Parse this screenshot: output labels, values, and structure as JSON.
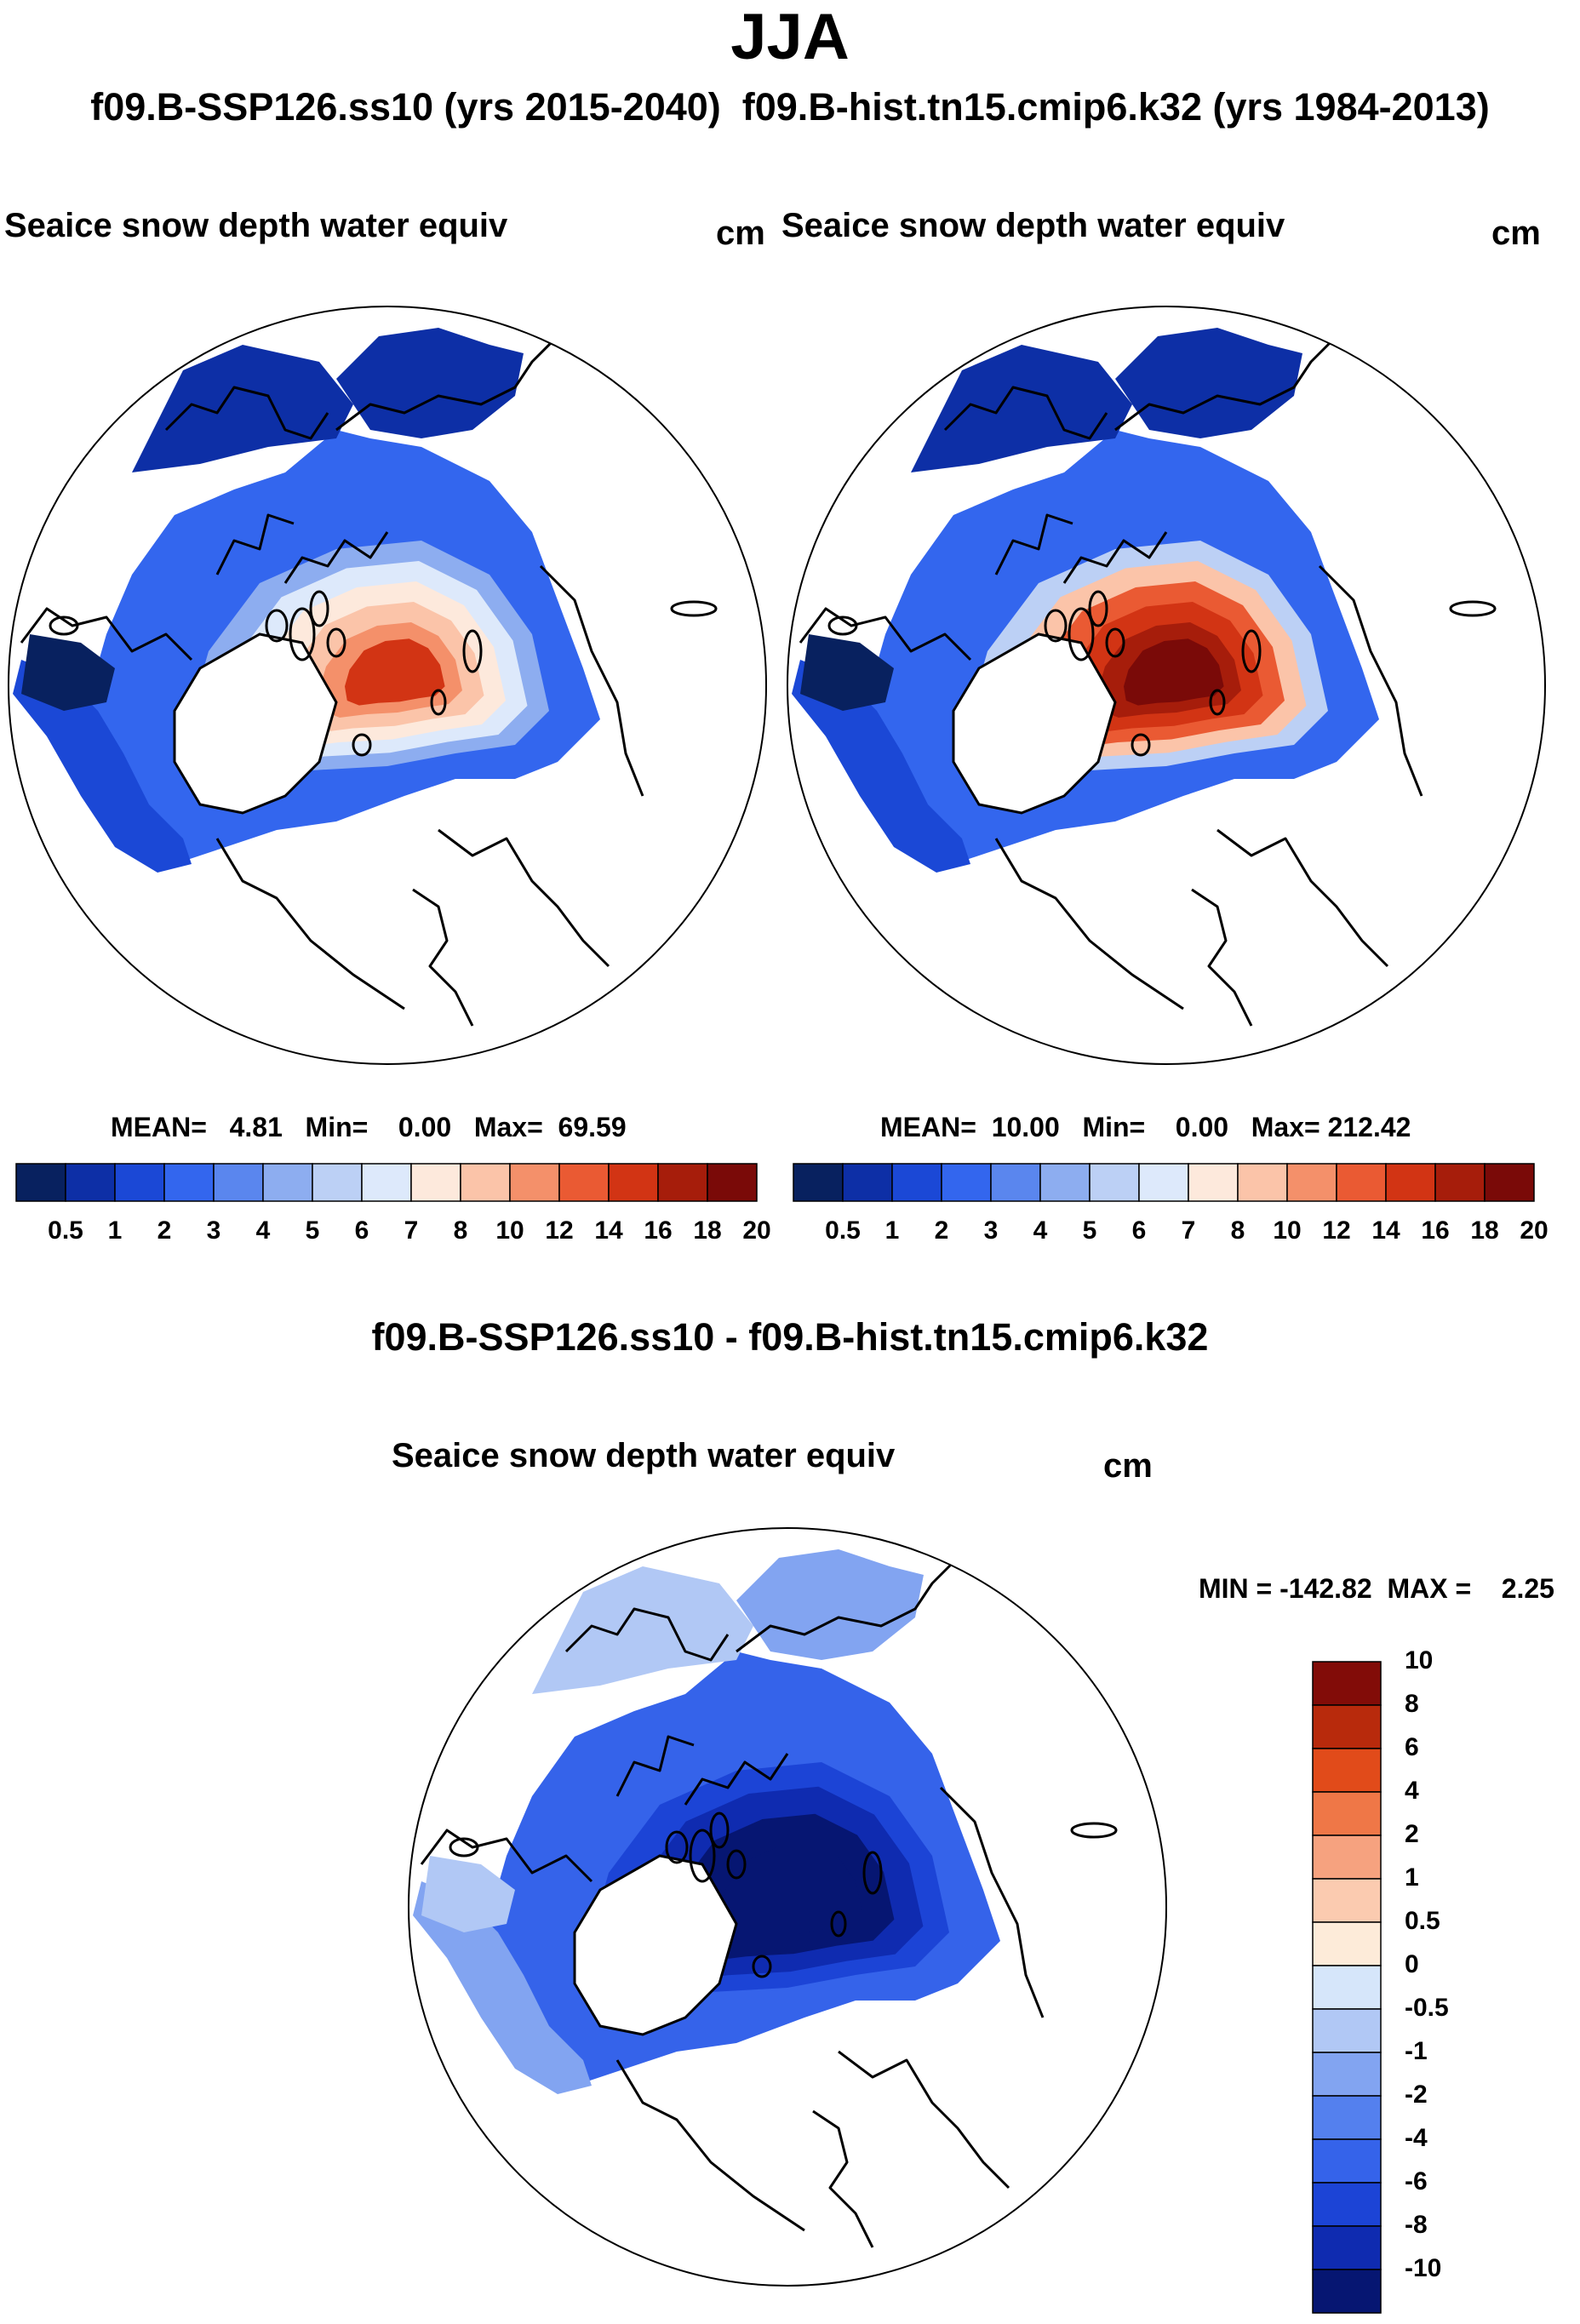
{
  "season_title": "JJA",
  "header_subtitle": "f09.B-SSP126.ss10 (yrs 2015-2040)  f09.B-hist.tn15.cmip6.k32 (yrs 1984-2013)",
  "colors": {
    "ocean": "#ffffff",
    "land_outline": "#000000",
    "abs_palette": [
      "#08215f",
      "#0d2fa6",
      "#1b48d6",
      "#3366ee",
      "#5a86ee",
      "#8dadf0",
      "#bcd0f5",
      "#dde9fb",
      "#fde9dc",
      "#fbc4a9",
      "#f4906a",
      "#ea5a33",
      "#d23414",
      "#a61d0b",
      "#7a0a08"
    ],
    "diff_palette": [
      "#061672",
      "#0f2bb0",
      "#1c44d6",
      "#3563ea",
      "#5480ee",
      "#82a4f1",
      "#b1c8f5",
      "#d6e6fa",
      "#fdebd9",
      "#fbcbb0",
      "#f6a27f",
      "#ef7747",
      "#e14b1a",
      "#b82a0c",
      "#820c08"
    ]
  },
  "chart_data": [
    {
      "type": "heatmap",
      "projection": "north-polar-stereographic",
      "title": "Seaice snow depth water equiv",
      "units": "cm",
      "case": "f09.B-SSP126.ss10 (yrs 2015-2040)",
      "stats": {
        "mean": "4.81",
        "min": "0.00",
        "max": "69.59"
      },
      "stats_label": "MEAN=   4.81   Min=    0.00   Max=  69.59",
      "colorbar": {
        "orientation": "horizontal",
        "levels": [
          0.5,
          1,
          2,
          3,
          4,
          5,
          6,
          7,
          8,
          10,
          12,
          14,
          16,
          18,
          20
        ],
        "tick_labels": [
          "0.5",
          "1",
          "2",
          "3",
          "4",
          "5",
          "6",
          "7",
          "8",
          "10",
          "12",
          "14",
          "16",
          "18",
          "20"
        ]
      },
      "central_intensity": 0.72
    },
    {
      "type": "heatmap",
      "projection": "north-polar-stereographic",
      "title": "Seaice snow depth water equiv",
      "units": "cm",
      "case": "f09.B-hist.tn15.cmip6.k32 (yrs 1984-2013)",
      "stats": {
        "mean": "10.00",
        "min": "0.00",
        "max": "212.42"
      },
      "stats_label": "MEAN=  10.00   Min=    0.00   Max= 212.42",
      "colorbar": {
        "orientation": "horizontal",
        "levels": [
          0.5,
          1,
          2,
          3,
          4,
          5,
          6,
          7,
          8,
          10,
          12,
          14,
          16,
          18,
          20
        ],
        "tick_labels": [
          "0.5",
          "1",
          "2",
          "3",
          "4",
          "5",
          "6",
          "7",
          "8",
          "10",
          "12",
          "14",
          "16",
          "18",
          "20"
        ]
      },
      "central_intensity": 1.0
    },
    {
      "type": "heatmap",
      "projection": "north-polar-stereographic",
      "title": "Seaice snow depth water equiv",
      "units": "cm",
      "case": "f09.B-SSP126.ss10 - f09.B-hist.tn15.cmip6.k32",
      "stats": {
        "min": "-142.82",
        "max": "2.25"
      },
      "stats_label": "MIN = -142.82  MAX =    2.25",
      "colorbar": {
        "orientation": "vertical",
        "levels": [
          -10,
          -8,
          -6,
          -4,
          -2,
          -1,
          -0.5,
          0,
          0.5,
          1,
          2,
          4,
          6,
          8,
          10
        ],
        "tick_labels": [
          "-10",
          "-8",
          "-6",
          "-4",
          "-2",
          "-1",
          "-0.5",
          "0",
          "0.5",
          "1",
          "2",
          "4",
          "6",
          "8",
          "10"
        ]
      },
      "central_intensity": -1.0
    }
  ]
}
